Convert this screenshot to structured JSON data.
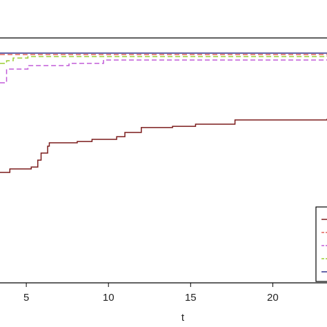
{
  "chart_data": {
    "type": "line",
    "x_label": "t",
    "step": true,
    "xlim": [
      3.4,
      23.3
    ],
    "xticks": [
      5,
      10,
      15,
      20
    ],
    "ylim": [
      0,
      1
    ],
    "legend": "bottom-right",
    "series": [
      {
        "color": "#7a1a1a",
        "dash": false,
        "x": [
          3.4,
          4.0,
          5.3,
          5.7,
          5.9,
          6.3,
          6.4,
          8.1,
          9.0,
          10.5,
          11.0,
          12.0,
          13.9,
          15.3,
          17.7,
          23.3
        ],
        "values": [
          0.451,
          0.465,
          0.473,
          0.501,
          0.53,
          0.558,
          0.572,
          0.577,
          0.586,
          0.597,
          0.614,
          0.634,
          0.639,
          0.648,
          0.665,
          0.67
        ]
      },
      {
        "color": "#e0605a",
        "dash": true,
        "x": [
          3.4,
          23.3
        ],
        "values": [
          0.932,
          0.932
        ]
      },
      {
        "color": "#c05ad8",
        "dash": true,
        "x": [
          3.4,
          3.8,
          5.1,
          7.6,
          9.7,
          23.3
        ],
        "values": [
          0.817,
          0.873,
          0.887,
          0.896,
          0.91,
          0.913
        ]
      },
      {
        "color": "#9acd32",
        "dash": true,
        "x": [
          3.4,
          3.8,
          4.2,
          5.1,
          23.3
        ],
        "values": [
          0.896,
          0.907,
          0.918,
          0.924,
          0.927
        ]
      },
      {
        "color": "#30308a",
        "dash": false,
        "x": [
          3.4,
          23.3
        ],
        "values": [
          0.938,
          0.938
        ]
      }
    ]
  }
}
